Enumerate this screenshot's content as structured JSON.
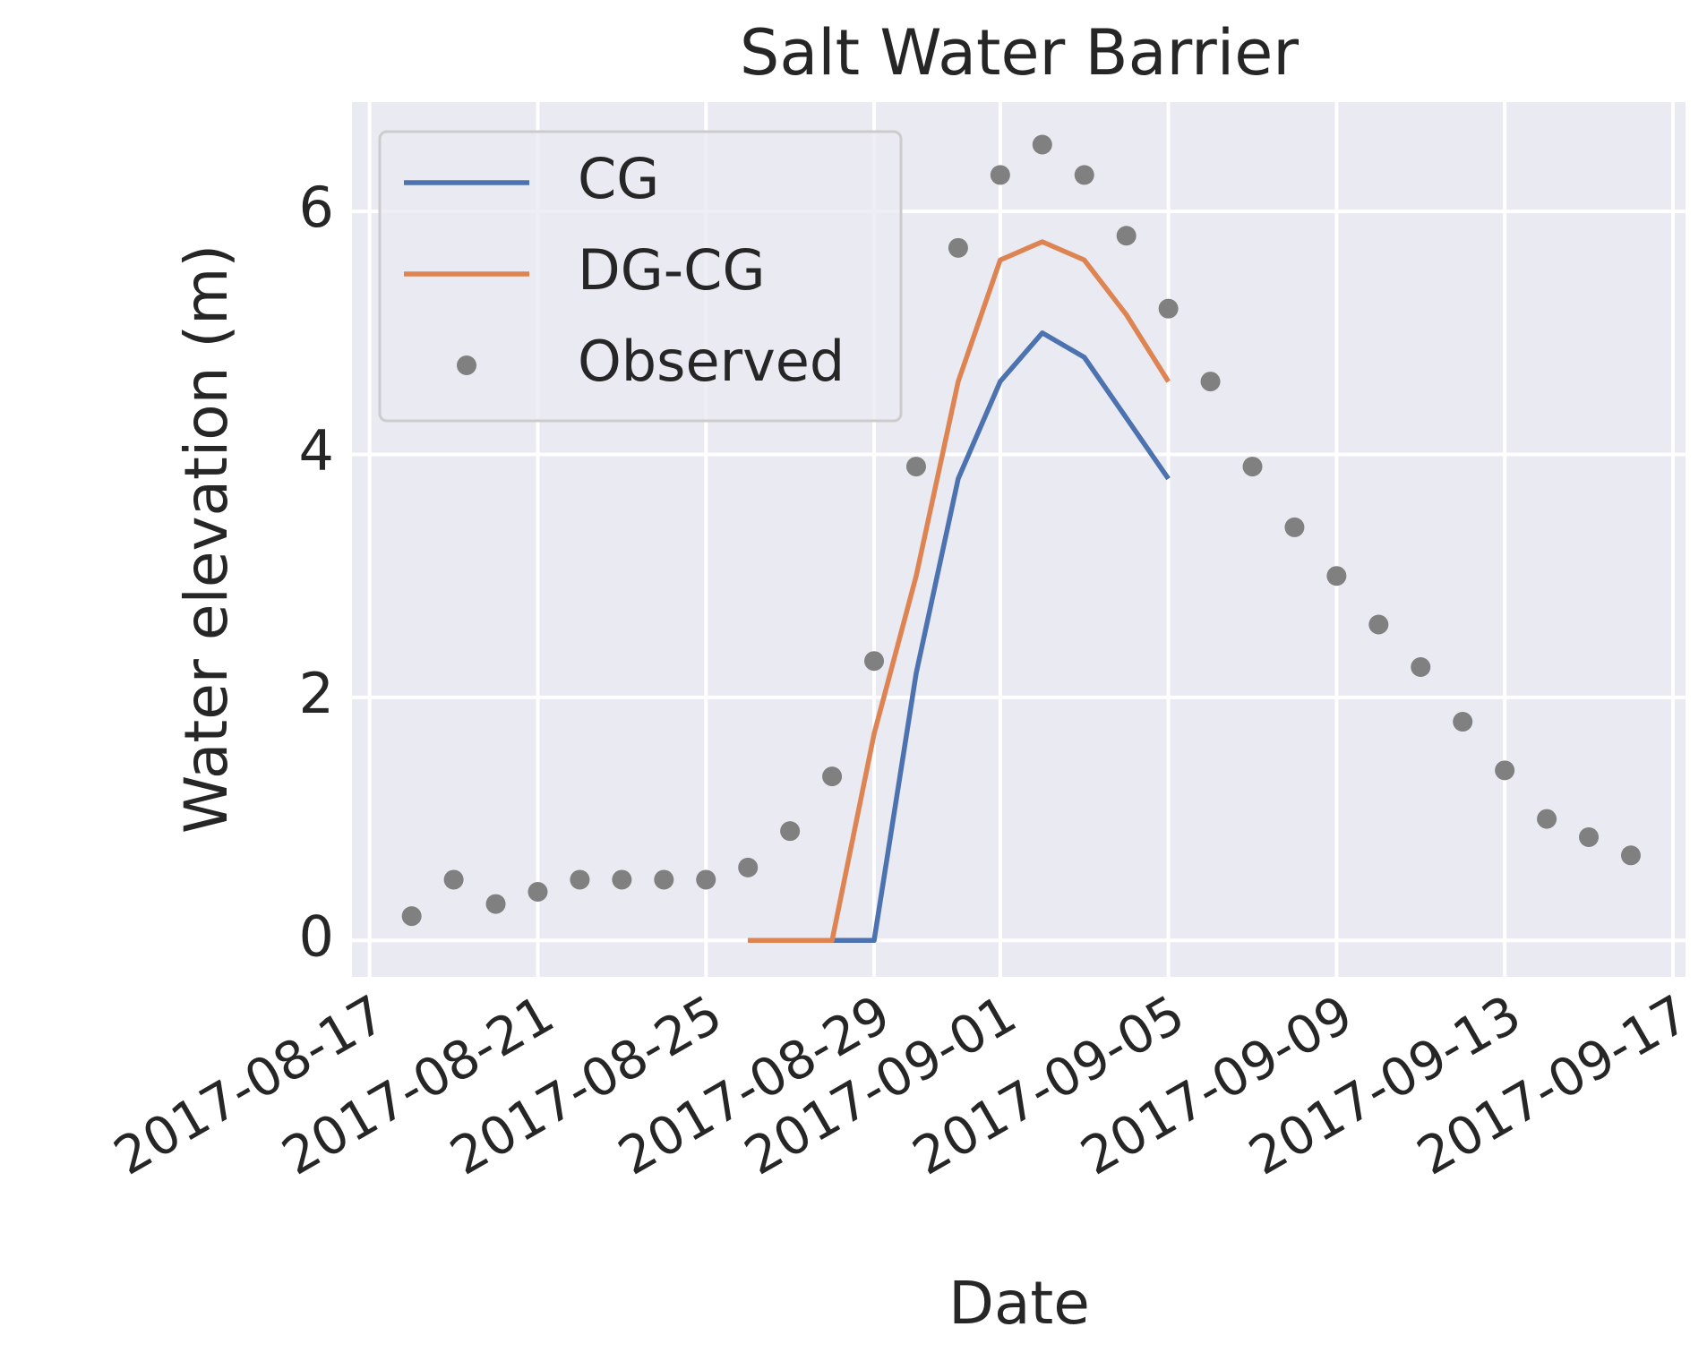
{
  "chart_data": {
    "type": "line",
    "title": "Salt Water Barrier",
    "xlabel": "Date",
    "ylabel": "Water elevation (m)",
    "series": [
      {
        "name": "CG",
        "color": "#4c72b0",
        "marker": "line",
        "x": [
          "2017-08-26",
          "2017-08-27",
          "2017-08-28",
          "2017-08-29",
          "2017-08-30",
          "2017-08-31",
          "2017-09-01",
          "2017-09-02",
          "2017-09-03",
          "2017-09-04",
          "2017-09-05"
        ],
        "values": [
          0,
          0,
          0,
          0,
          2.2,
          3.8,
          4.6,
          5.0,
          4.8,
          4.3,
          3.8
        ]
      },
      {
        "name": "DG-CG",
        "color": "#dd8452",
        "marker": "line",
        "x": [
          "2017-08-26",
          "2017-08-27",
          "2017-08-28",
          "2017-08-29",
          "2017-08-30",
          "2017-08-31",
          "2017-09-01",
          "2017-09-02",
          "2017-09-03",
          "2017-09-04",
          "2017-09-05"
        ],
        "values": [
          0,
          0,
          0,
          1.7,
          3.0,
          4.6,
          5.6,
          5.75,
          5.6,
          5.15,
          4.6
        ]
      },
      {
        "name": "Observed",
        "color": "#808080",
        "marker": "dot",
        "x": [
          "2017-08-18",
          "2017-08-19",
          "2017-08-20",
          "2017-08-21",
          "2017-08-22",
          "2017-08-23",
          "2017-08-24",
          "2017-08-25",
          "2017-08-26",
          "2017-08-27",
          "2017-08-28",
          "2017-08-29",
          "2017-08-30",
          "2017-08-31",
          "2017-09-01",
          "2017-09-02",
          "2017-09-03",
          "2017-09-04",
          "2017-09-05",
          "2017-09-06",
          "2017-09-07",
          "2017-09-08",
          "2017-09-09",
          "2017-09-10",
          "2017-09-11",
          "2017-09-12",
          "2017-09-13",
          "2017-09-14",
          "2017-09-15",
          "2017-09-16"
        ],
        "values": [
          0.2,
          0.5,
          0.3,
          0.4,
          0.5,
          0.5,
          0.5,
          0.5,
          0.6,
          0.9,
          1.35,
          2.3,
          3.9,
          5.7,
          6.3,
          6.55,
          6.3,
          5.8,
          5.2,
          4.6,
          3.9,
          3.4,
          3.0,
          2.6,
          2.25,
          1.8,
          1.4,
          1.0,
          0.85,
          0.7
        ]
      }
    ],
    "xlim": [
      "2017-08-17",
      "2017-09-17"
    ],
    "xticks": [
      "2017-08-17",
      "2017-08-21",
      "2017-08-25",
      "2017-08-29",
      "2017-09-01",
      "2017-09-05",
      "2017-09-09",
      "2017-09-13",
      "2017-09-17"
    ],
    "ylim": [
      -0.3,
      6.9
    ],
    "yticks": [
      0,
      2,
      4,
      6
    ],
    "grid": true,
    "legend": "upper left"
  }
}
